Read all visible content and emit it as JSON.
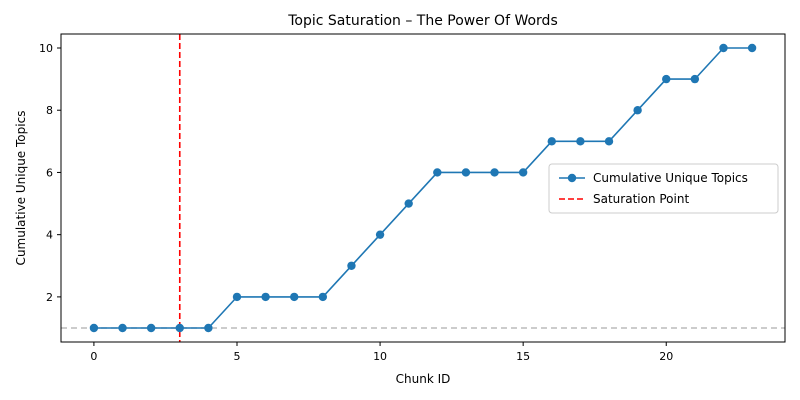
{
  "chart_data": {
    "type": "line",
    "title": "Topic Saturation – The Power Of Words",
    "xlabel": "Chunk ID",
    "ylabel": "Cumulative Unique Topics",
    "xlim": [
      -1.15,
      24.15
    ],
    "ylim": [
      0.55,
      10.45
    ],
    "xticks": [
      0,
      5,
      10,
      15,
      20
    ],
    "yticks": [
      2,
      4,
      6,
      8,
      10
    ],
    "grid": false,
    "legend_position": "center-right",
    "series": [
      {
        "name": "Cumulative Unique Topics",
        "color": "#1f77b4",
        "marker": "circle",
        "x": [
          0,
          1,
          2,
          3,
          4,
          5,
          6,
          7,
          8,
          9,
          10,
          11,
          12,
          13,
          14,
          15,
          16,
          17,
          18,
          19,
          20,
          21,
          22,
          23
        ],
        "values": [
          1,
          1,
          1,
          1,
          1,
          2,
          2,
          2,
          2,
          3,
          4,
          5,
          6,
          6,
          6,
          6,
          7,
          7,
          7,
          8,
          9,
          9,
          10,
          10
        ]
      }
    ],
    "reference_lines": [
      {
        "name": "Saturation Point",
        "orientation": "vertical",
        "value": 3,
        "color": "#ff0000",
        "style": "dashed",
        "in_legend": true
      },
      {
        "name": "",
        "orientation": "horizontal",
        "value": 1,
        "color": "#bbbbbb",
        "style": "dashed",
        "in_legend": false
      }
    ]
  }
}
